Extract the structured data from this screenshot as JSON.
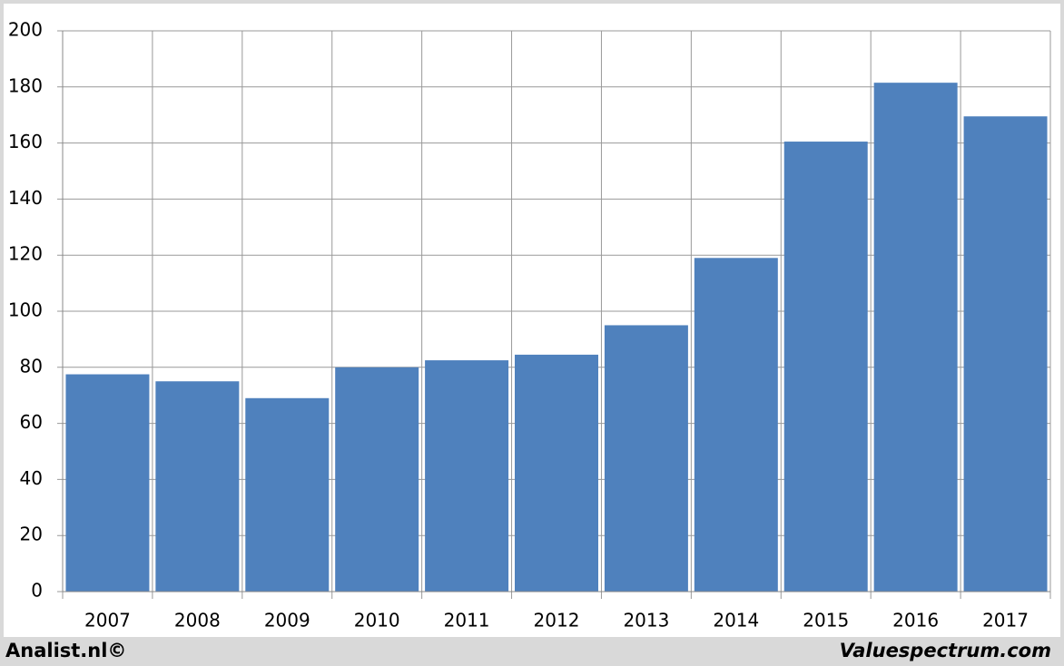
{
  "chart_data": {
    "type": "bar",
    "categories": [
      "2007",
      "2008",
      "2009",
      "2010",
      "2011",
      "2012",
      "2013",
      "2014",
      "2015",
      "2016",
      "2017"
    ],
    "values": [
      77.5,
      75,
      69,
      80,
      82.5,
      84.5,
      95,
      119,
      160.5,
      181.5,
      169.5
    ],
    "color": "#4f81bd",
    "ylim": [
      0,
      200
    ],
    "yticks": [
      0,
      20,
      40,
      60,
      80,
      100,
      120,
      140,
      160,
      180,
      200
    ],
    "grid": true,
    "footer_left": "Analist.nl©",
    "footer_right": "Valuespectrum.com"
  }
}
